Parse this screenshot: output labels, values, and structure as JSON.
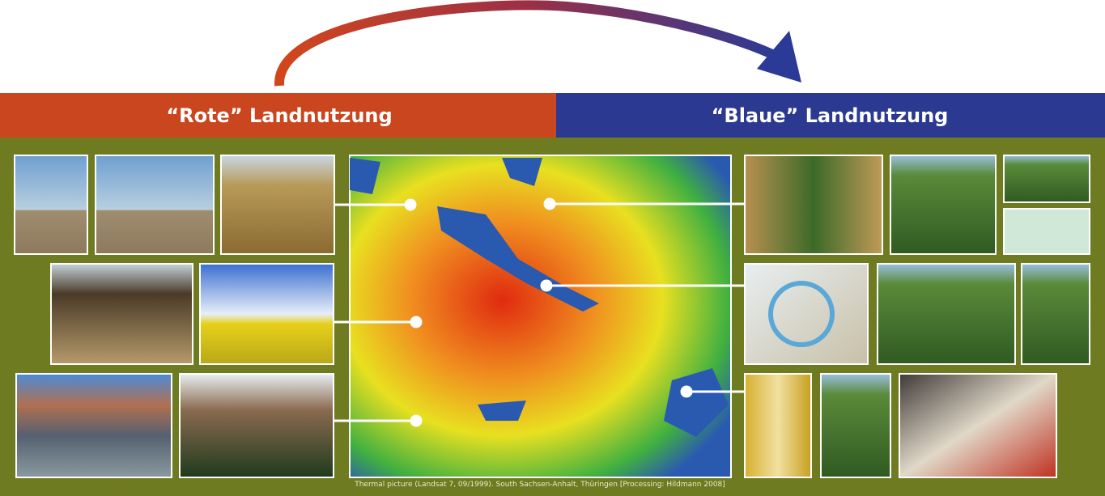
{
  "header": {
    "left_label": "“Rote” Landnutzung",
    "right_label": "“Blaue” Landnutzung"
  },
  "map": {
    "caption": "Thermal picture (Landsat 7, 09/1999). South Sachsen-Anhalt, Thüringen [Processing: Hildmann 2008]"
  }
}
